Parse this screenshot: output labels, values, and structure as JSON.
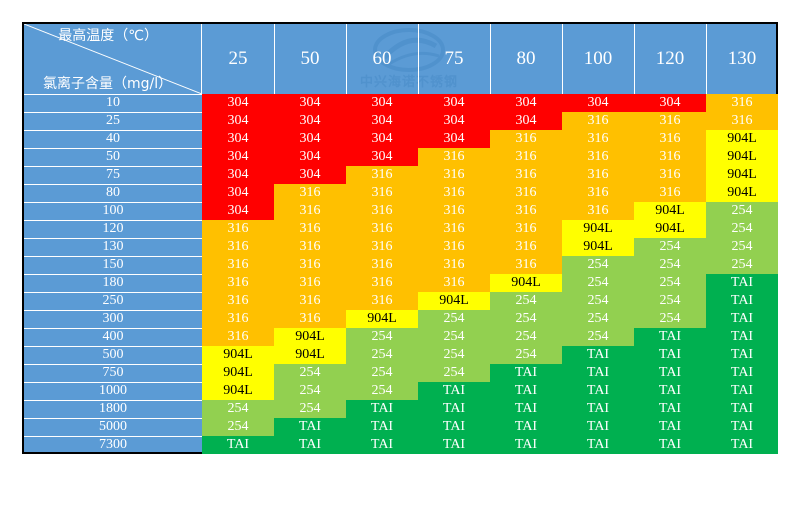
{
  "header": {
    "corner_top": "最高温度（℃）",
    "corner_bottom": "氯离子含量（mg/l）"
  },
  "watermark": {
    "text": "中兴海诺不锈钢"
  },
  "colors": {
    "304": "#ff0000",
    "316": "#ffc000",
    "904L": "#ffff00",
    "254": "#92d050",
    "TAI": "#00b050",
    "header_bg": "#5b9bd5"
  },
  "chart_data": {
    "type": "table",
    "x_label": "最高温度（℃）",
    "y_label": "氯离子含量（mg/l）",
    "temperatures": [
      "25",
      "50",
      "60",
      "75",
      "80",
      "100",
      "120",
      "130"
    ],
    "chloride_levels": [
      "10",
      "25",
      "40",
      "50",
      "75",
      "80",
      "100",
      "120",
      "130",
      "150",
      "180",
      "250",
      "300",
      "400",
      "500",
      "750",
      "1000",
      "1800",
      "5000",
      "7300"
    ],
    "rows": [
      [
        "304",
        "304",
        "304",
        "304",
        "304",
        "304",
        "304",
        "316"
      ],
      [
        "304",
        "304",
        "304",
        "304",
        "304",
        "316",
        "316",
        "316"
      ],
      [
        "304",
        "304",
        "304",
        "304",
        "316",
        "316",
        "316",
        "904L"
      ],
      [
        "304",
        "304",
        "304",
        "316",
        "316",
        "316",
        "316",
        "904L"
      ],
      [
        "304",
        "304",
        "316",
        "316",
        "316",
        "316",
        "316",
        "904L"
      ],
      [
        "304",
        "316",
        "316",
        "316",
        "316",
        "316",
        "316",
        "904L"
      ],
      [
        "304",
        "316",
        "316",
        "316",
        "316",
        "316",
        "904L",
        "254"
      ],
      [
        "316",
        "316",
        "316",
        "316",
        "316",
        "904L",
        "904L",
        "254"
      ],
      [
        "316",
        "316",
        "316",
        "316",
        "316",
        "904L",
        "254",
        "254"
      ],
      [
        "316",
        "316",
        "316",
        "316",
        "316",
        "254",
        "254",
        "254"
      ],
      [
        "316",
        "316",
        "316",
        "316",
        "904L",
        "254",
        "254",
        "TAI"
      ],
      [
        "316",
        "316",
        "316",
        "904L",
        "254",
        "254",
        "254",
        "TAI"
      ],
      [
        "316",
        "316",
        "904L",
        "254",
        "254",
        "254",
        "254",
        "TAI"
      ],
      [
        "316",
        "904L",
        "254",
        "254",
        "254",
        "254",
        "TAI",
        "TAI"
      ],
      [
        "904L",
        "904L",
        "254",
        "254",
        "254",
        "TAI",
        "TAI",
        "TAI"
      ],
      [
        "904L",
        "254",
        "254",
        "254",
        "TAI",
        "TAI",
        "TAI",
        "TAI"
      ],
      [
        "904L",
        "254",
        "254",
        "TAI",
        "TAI",
        "TAI",
        "TAI",
        "TAI"
      ],
      [
        "254",
        "254",
        "TAI",
        "TAI",
        "TAI",
        "TAI",
        "TAI",
        "TAI"
      ],
      [
        "254",
        "TAI",
        "TAI",
        "TAI",
        "TAI",
        "TAI",
        "TAI",
        "TAI"
      ],
      [
        "TAI",
        "TAI",
        "TAI",
        "TAI",
        "TAI",
        "TAI",
        "TAI",
        "TAI"
      ]
    ]
  }
}
